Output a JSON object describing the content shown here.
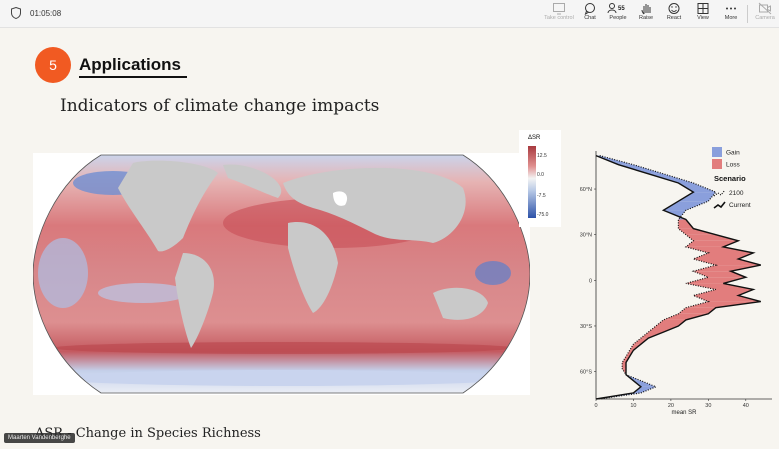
{
  "toolbar": {
    "timer": "01:05:08",
    "participant_count": "55",
    "buttons": [
      {
        "label": "Take control",
        "icon": "take-control-icon",
        "enabled": false
      },
      {
        "label": "Chat",
        "icon": "chat-icon",
        "enabled": true
      },
      {
        "label": "People",
        "icon": "people-icon",
        "enabled": true
      },
      {
        "label": "Raise",
        "icon": "raise-hand-icon",
        "enabled": true
      },
      {
        "label": "React",
        "icon": "react-icon",
        "enabled": true
      },
      {
        "label": "View",
        "icon": "view-icon",
        "enabled": true
      },
      {
        "label": "More",
        "icon": "more-icon",
        "enabled": true
      },
      {
        "label": "Camera",
        "icon": "camera-icon",
        "enabled": false
      }
    ]
  },
  "slide": {
    "section_number": "5",
    "section_title": "Applications",
    "subtitle": "Indicators of climate change impacts",
    "footer": "ΔSR - Change in Species Richness",
    "speaker_name": "Maarten Vandenberghe",
    "accent_color": "#f15a22"
  },
  "map_legend": {
    "title": "ΔSR",
    "labels": [
      "12.5",
      "0.0",
      "-7.5",
      "-75.0"
    ]
  },
  "chart_data": {
    "type": "line",
    "orientation": "horizontal",
    "xlabel": "mean SR",
    "xticks": [
      0,
      10,
      20,
      30,
      40
    ],
    "xlim": [
      0,
      47
    ],
    "yticks": [
      "60°N",
      "30°N",
      "0",
      "30°S",
      "60°S"
    ],
    "ylim": [
      -78,
      85
    ],
    "legend_fill": [
      {
        "name": "Gain",
        "color": "#8a9fdc"
      },
      {
        "name": "Loss",
        "color": "#e27d7d"
      }
    ],
    "legend_line_title": "Scenario",
    "legend_lines": [
      {
        "name": "2100",
        "style": "dotted"
      },
      {
        "name": "Current",
        "style": "solid"
      }
    ],
    "current": {
      "lat": [
        82,
        76,
        70,
        64,
        58,
        52,
        46,
        40,
        34,
        30,
        26,
        22,
        18,
        14,
        10,
        6,
        2,
        -2,
        -6,
        -10,
        -14,
        -18,
        -22,
        -26,
        -30,
        -34,
        -38,
        -42,
        -46,
        -50,
        -54,
        -58,
        -62,
        -66,
        -70,
        -74,
        -78
      ],
      "value": [
        0,
        6,
        14,
        22,
        26,
        22,
        18,
        24,
        26,
        32,
        38,
        34,
        42,
        38,
        44,
        36,
        40,
        34,
        42,
        38,
        44,
        32,
        30,
        24,
        22,
        18,
        14,
        12,
        10,
        9,
        8,
        8,
        8,
        10,
        12,
        10,
        0
      ]
    },
    "future_2100": {
      "lat": [
        82,
        76,
        70,
        64,
        58,
        52,
        46,
        40,
        34,
        30,
        26,
        22,
        18,
        14,
        10,
        6,
        2,
        -2,
        -6,
        -10,
        -14,
        -18,
        -22,
        -26,
        -30,
        -34,
        -38,
        -42,
        -46,
        -50,
        -54,
        -58,
        -62,
        -66,
        -70,
        -74,
        -78
      ],
      "value": [
        1,
        10,
        18,
        26,
        32,
        30,
        24,
        22,
        22,
        24,
        26,
        24,
        30,
        26,
        32,
        26,
        30,
        24,
        32,
        26,
        30,
        24,
        22,
        18,
        16,
        14,
        12,
        10,
        9,
        8,
        7,
        7,
        8,
        12,
        16,
        12,
        1
      ]
    }
  }
}
